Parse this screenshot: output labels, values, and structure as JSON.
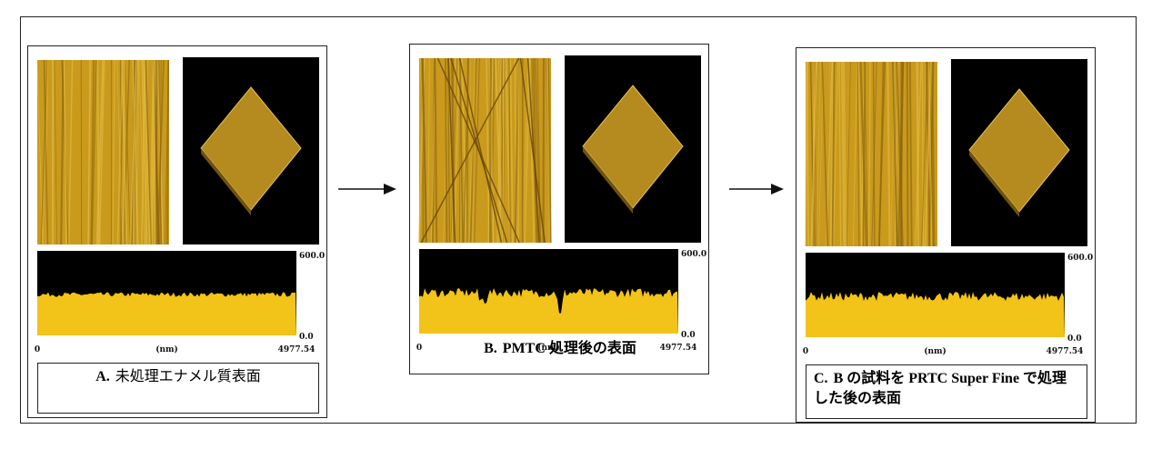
{
  "panels": [
    {
      "label": "A.",
      "caption": "未処理エナメル質表面",
      "profile": {
        "z_max": "600.0",
        "z_min": "0.0",
        "x_start": "0",
        "x_unit": "(nm)",
        "x_end": "4977.54"
      }
    },
    {
      "label": "B.",
      "caption": "PMTC 処理後の表面",
      "profile": {
        "z_max": "600.0",
        "z_min": "0.0",
        "x_start": "0",
        "x_unit": "(nm)",
        "x_end": "4977.54"
      }
    },
    {
      "label": "C.",
      "caption": "B の試料を PRTC Super Fine で処理した後の表面",
      "profile": {
        "z_max": "600.0",
        "z_min": "0.0",
        "x_start": "0",
        "x_unit": "(nm)",
        "x_end": "4977.54"
      }
    }
  ]
}
